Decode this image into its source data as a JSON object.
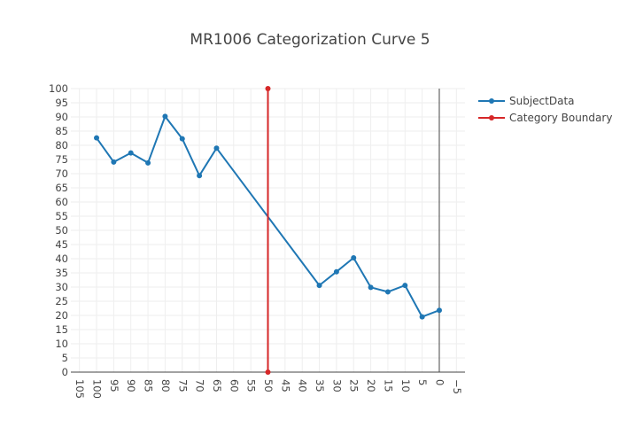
{
  "chart_data": {
    "type": "line",
    "title": "MR1006 Categorization Curve 5",
    "xlabel": "",
    "ylabel": "",
    "x_reversed": true,
    "xlim": [
      -7.5,
      107.5
    ],
    "ylim": [
      0,
      100
    ],
    "x_ticks": [
      105,
      100,
      95,
      90,
      85,
      80,
      75,
      70,
      65,
      60,
      55,
      50,
      45,
      40,
      35,
      30,
      25,
      20,
      15,
      10,
      5,
      0,
      -5
    ],
    "y_ticks": [
      0,
      5,
      10,
      15,
      20,
      25,
      30,
      35,
      40,
      45,
      50,
      55,
      60,
      65,
      70,
      75,
      80,
      85,
      90,
      95,
      100
    ],
    "grid": true,
    "zero_line_x": 0,
    "legend_position": "top-right",
    "series": [
      {
        "name": "SubjectData",
        "color": "#1f77b4",
        "x": [
          100,
          95,
          90,
          85,
          80,
          75,
          70,
          65,
          35,
          30,
          25,
          20,
          15,
          10,
          5,
          0
        ],
        "y": [
          82.6,
          74.1,
          77.3,
          73.8,
          90.2,
          82.3,
          69.3,
          79,
          30.6,
          35.4,
          40.3,
          29.9,
          28.3,
          30.6,
          19.5,
          21.8
        ]
      },
      {
        "name": "Category Boundary",
        "color": "#d62728",
        "x": [
          50,
          50
        ],
        "y": [
          100,
          0
        ]
      }
    ]
  }
}
